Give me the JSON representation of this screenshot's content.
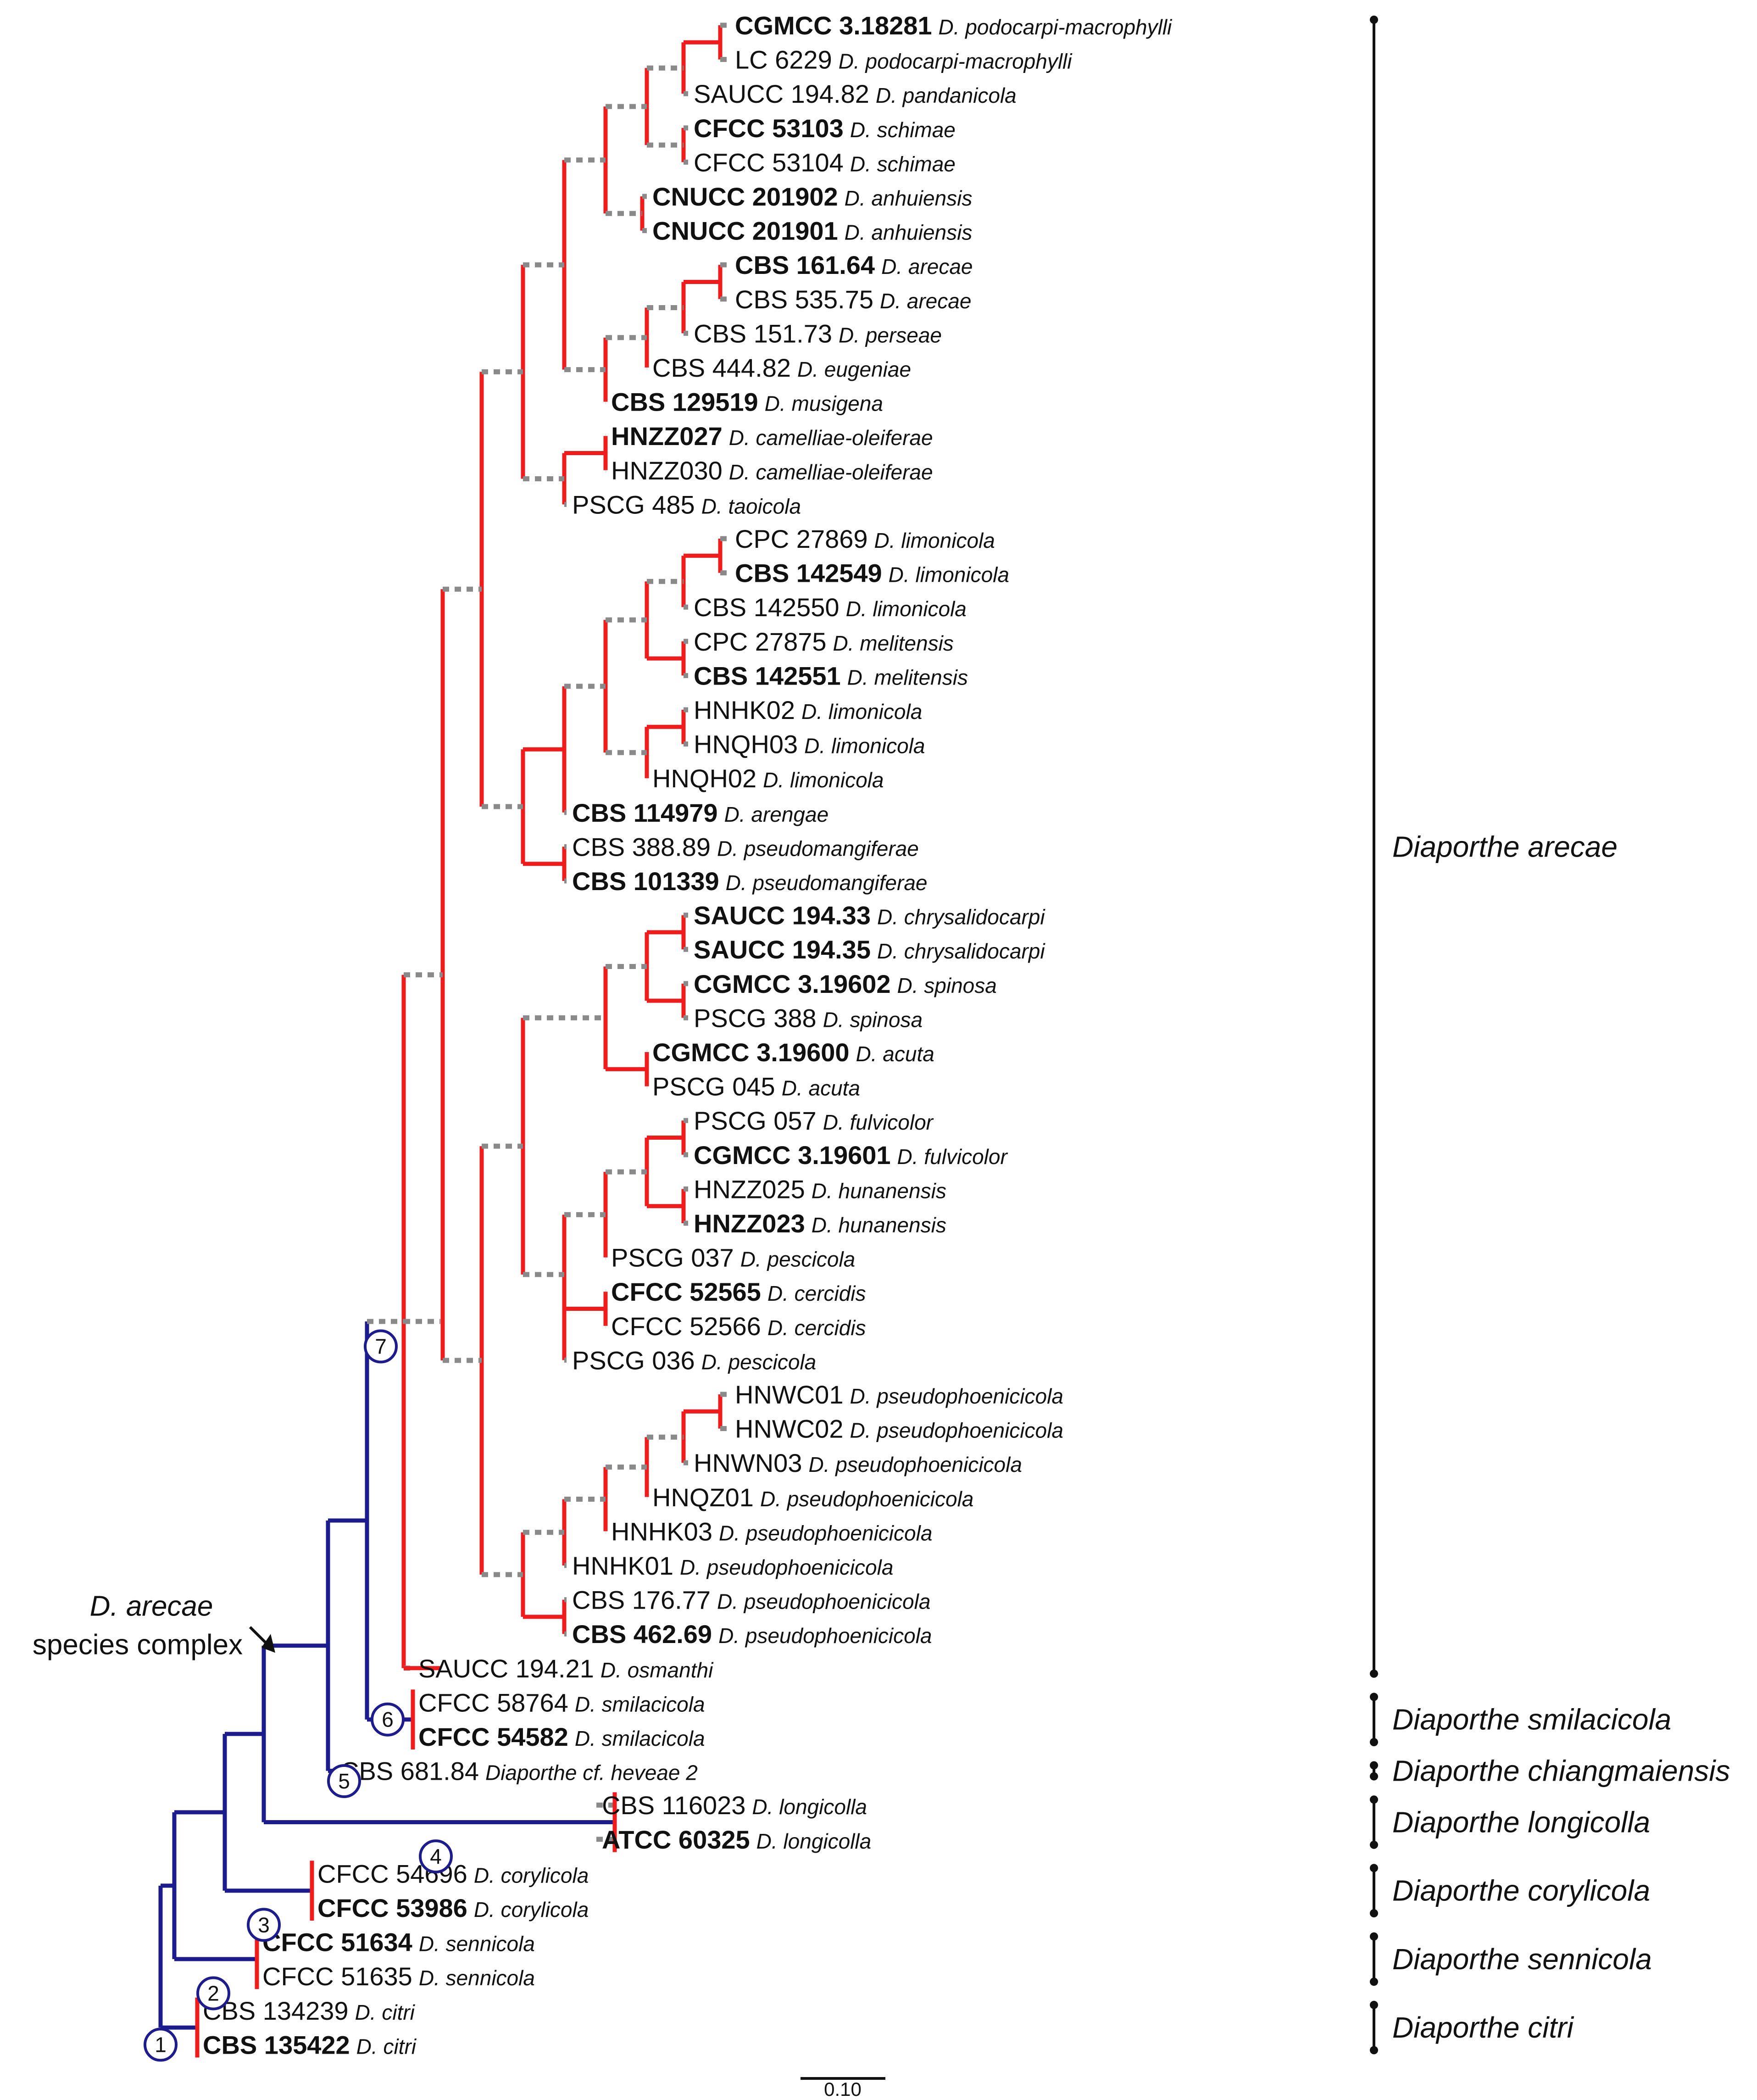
{
  "figure": {
    "description_labels": {
      "complex_line1": "D. arecae",
      "complex_line2": "species complex"
    },
    "scale_label": "0.10",
    "colors": {
      "backbone": "#1c1c8c",
      "clade": "#ee1c1c",
      "dotted": "#8a8a8a",
      "bracket": "#111111"
    }
  },
  "taxa": [
    {
      "strain": "CGMCC 3.18281",
      "species": "D. podocarpi-macrophylli",
      "type": true
    },
    {
      "strain": "LC 6229",
      "species": "D. podocarpi-macrophylli",
      "type": false
    },
    {
      "strain": "SAUCC 194.82",
      "species": "D. pandanicola",
      "type": false
    },
    {
      "strain": "CFCC 53103",
      "species": "D. schimae",
      "type": true
    },
    {
      "strain": "CFCC 53104",
      "species": "D. schimae",
      "type": false
    },
    {
      "strain": "CNUCC 201902",
      "species": "D. anhuiensis",
      "type": true
    },
    {
      "strain": "CNUCC 201901",
      "species": "D. anhuiensis",
      "type": true
    },
    {
      "strain": "CBS 161.64",
      "species": "D. arecae",
      "type": true
    },
    {
      "strain": "CBS 535.75",
      "species": "D. arecae",
      "type": false
    },
    {
      "strain": "CBS 151.73",
      "species": "D. perseae",
      "type": false
    },
    {
      "strain": "CBS 444.82",
      "species": "D. eugeniae",
      "type": false
    },
    {
      "strain": "CBS 129519",
      "species": "D. musigena",
      "type": true
    },
    {
      "strain": "HNZZ027",
      "species": "D. camelliae-oleiferae",
      "type": true
    },
    {
      "strain": "HNZZ030",
      "species": "D. camelliae-oleiferae",
      "type": false
    },
    {
      "strain": "PSCG 485",
      "species": "D. taoicola",
      "type": false
    },
    {
      "strain": "CPC 27869",
      "species": "D. limonicola",
      "type": false
    },
    {
      "strain": "CBS 142549",
      "species": "D. limonicola",
      "type": true
    },
    {
      "strain": "CBS 142550",
      "species": "D. limonicola",
      "type": false
    },
    {
      "strain": "CPC 27875",
      "species": "D. melitensis",
      "type": false
    },
    {
      "strain": "CBS 142551",
      "species": "D. melitensis",
      "type": true
    },
    {
      "strain": "HNHK02",
      "species": "D. limonicola",
      "type": false
    },
    {
      "strain": "HNQH03",
      "species": "D. limonicola",
      "type": false
    },
    {
      "strain": "HNQH02",
      "species": "D. limonicola",
      "type": false
    },
    {
      "strain": "CBS 114979",
      "species": "D. arengae",
      "type": true
    },
    {
      "strain": "CBS 388.89",
      "species": "D. pseudomangiferae",
      "type": false
    },
    {
      "strain": "CBS 101339",
      "species": "D. pseudomangiferae",
      "type": true
    },
    {
      "strain": "SAUCC 194.33",
      "species": "D. chrysalidocarpi",
      "type": true
    },
    {
      "strain": "SAUCC 194.35",
      "species": "D. chrysalidocarpi",
      "type": true
    },
    {
      "strain": "CGMCC 3.19602",
      "species": "D. spinosa",
      "type": true
    },
    {
      "strain": "PSCG 388",
      "species": "D. spinosa",
      "type": false
    },
    {
      "strain": "CGMCC 3.19600",
      "species": "D. acuta",
      "type": true
    },
    {
      "strain": "PSCG 045",
      "species": "D. acuta",
      "type": false
    },
    {
      "strain": "PSCG 057",
      "species": "D. fulvicolor",
      "type": false
    },
    {
      "strain": "CGMCC 3.19601",
      "species": "D. fulvicolor",
      "type": true
    },
    {
      "strain": "HNZZ025",
      "species": "D. hunanensis",
      "type": false
    },
    {
      "strain": "HNZZ023",
      "species": "D. hunanensis",
      "type": true
    },
    {
      "strain": "PSCG 037",
      "species": "D. pescicola",
      "type": false
    },
    {
      "strain": "CFCC 52565",
      "species": "D. cercidis",
      "type": true
    },
    {
      "strain": "CFCC 52566",
      "species": "D. cercidis",
      "type": false
    },
    {
      "strain": "PSCG 036",
      "species": "D. pescicola",
      "type": false
    },
    {
      "strain": "HNWC01",
      "species": "D. pseudophoenicicola",
      "type": false
    },
    {
      "strain": "HNWC02",
      "species": "D. pseudophoenicicola",
      "type": false
    },
    {
      "strain": "HNWN03",
      "species": "D. pseudophoenicicola",
      "type": false
    },
    {
      "strain": "HNQZ01",
      "species": "D. pseudophoenicicola",
      "type": false
    },
    {
      "strain": "HNHK03",
      "species": "D. pseudophoenicicola",
      "type": false
    },
    {
      "strain": "HNHK01",
      "species": "D. pseudophoenicicola",
      "type": false
    },
    {
      "strain": "CBS 176.77",
      "species": "D. pseudophoenicicola",
      "type": false
    },
    {
      "strain": "CBS 462.69",
      "species": "D. pseudophoenicicola",
      "type": true
    },
    {
      "strain": "SAUCC 194.21",
      "species": "D. osmanthi",
      "type": false
    },
    {
      "strain": "CFCC 58764",
      "species": "D. smilacicola",
      "type": false
    },
    {
      "strain": "CFCC 54582",
      "species": "D. smilacicola",
      "type": true
    },
    {
      "strain": "CBS 681.84",
      "species": "Diaporthe cf. heveae 2",
      "type": false
    },
    {
      "strain": "CBS 116023",
      "species": "D. longicolla",
      "type": false
    },
    {
      "strain": "ATCC 60325",
      "species": "D. longicolla",
      "type": true
    },
    {
      "strain": "CFCC 54696",
      "species": "D. corylicola",
      "type": false
    },
    {
      "strain": "CFCC 53986",
      "species": "D. corylicola",
      "type": true
    },
    {
      "strain": "CFCC 51634",
      "species": "D. sennicola",
      "type": true
    },
    {
      "strain": "CFCC 51635",
      "species": "D. sennicola",
      "type": false
    },
    {
      "strain": "CBS 134239",
      "species": "D. citri",
      "type": false
    },
    {
      "strain": "CBS 135422",
      "species": "D. citri",
      "type": true
    }
  ],
  "clades": [
    {
      "name": "Diaporthe arecae"
    },
    {
      "name": "Diaporthe smilacicola"
    },
    {
      "name": "Diaporthe chiangmaiensis"
    },
    {
      "name": "Diaporthe longicolla"
    },
    {
      "name": "Diaporthe corylicola"
    },
    {
      "name": "Diaporthe sennicola"
    },
    {
      "name": "Diaporthe citri"
    }
  ],
  "nodes": [
    "1",
    "2",
    "3",
    "4",
    "5",
    "6",
    "7"
  ]
}
